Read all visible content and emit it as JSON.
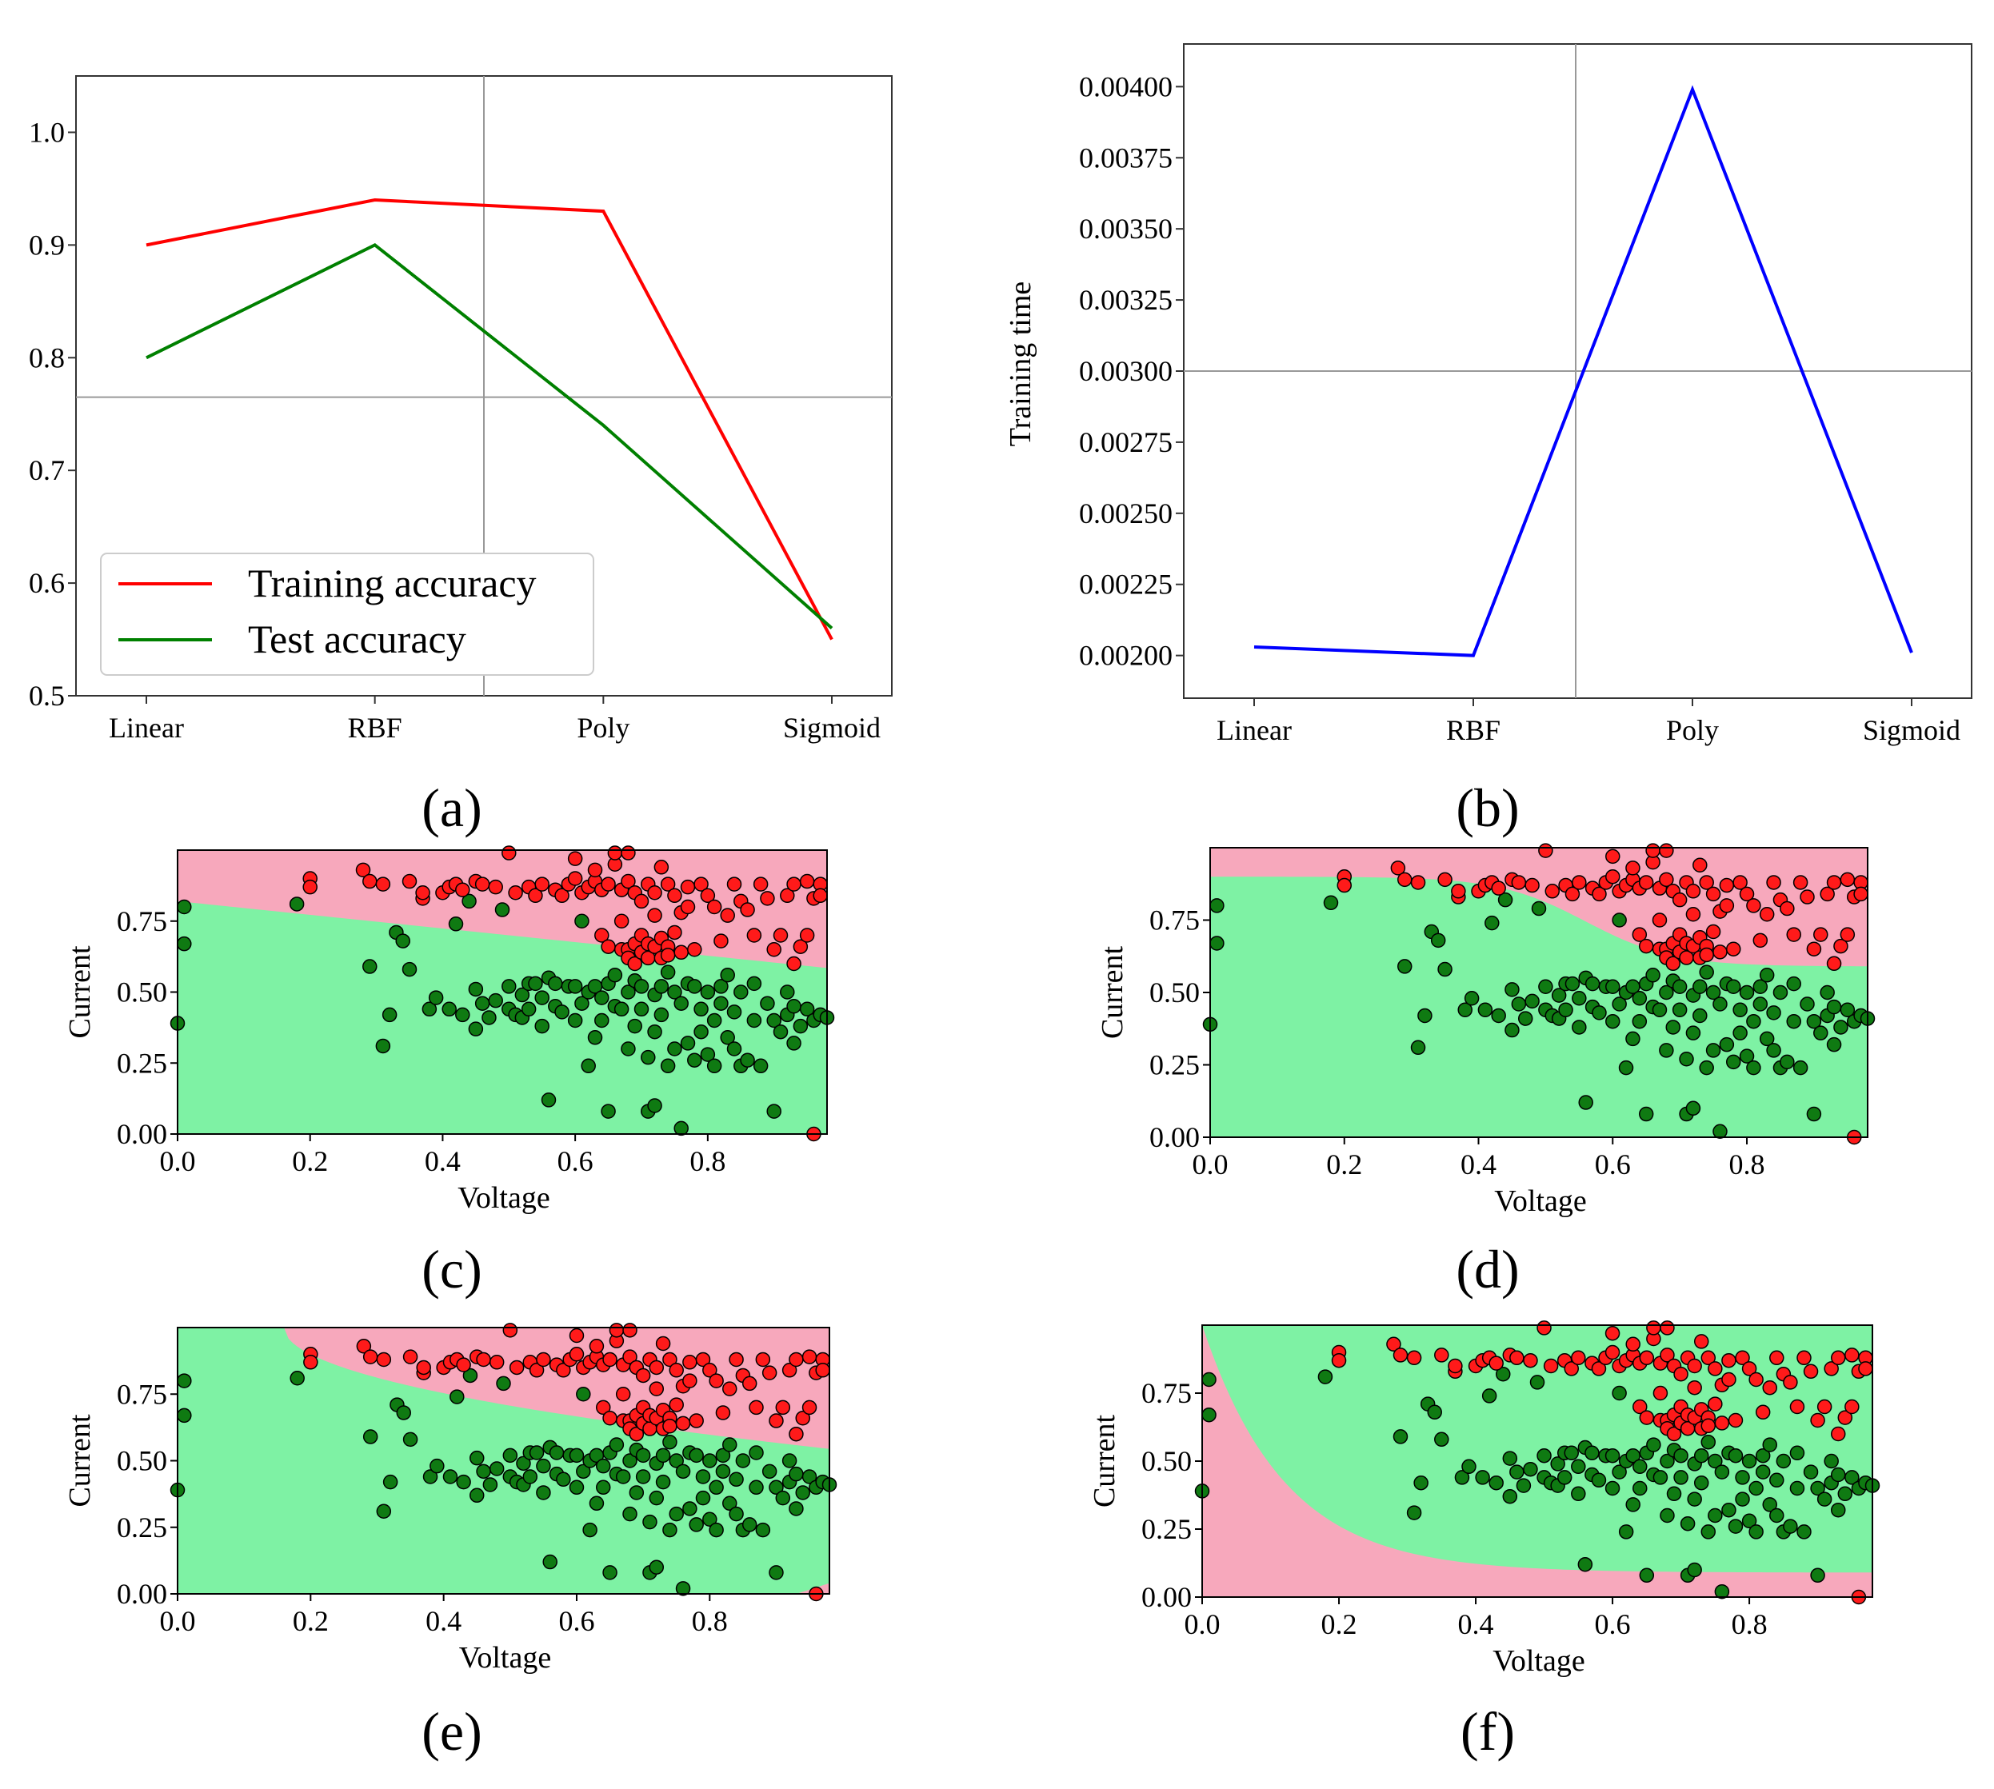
{
  "chart_data": [
    {
      "id": "a",
      "type": "line",
      "panel_label": "(a)",
      "categories": [
        "Linear",
        "RBF",
        "Poly",
        "Sigmoid"
      ],
      "series": [
        {
          "name": "Training accuracy",
          "color": "#ff0000",
          "values": [
            0.9,
            0.94,
            0.93,
            0.55
          ]
        },
        {
          "name": "Test accuracy",
          "color": "#008000",
          "values": [
            0.8,
            0.9,
            0.74,
            0.56
          ]
        }
      ],
      "ylim": [
        0.5,
        1.05
      ],
      "yticks": [
        "0.5",
        "0.6",
        "0.7",
        "0.8",
        "0.9",
        "1.0"
      ],
      "xlabel": "",
      "ylabel": "",
      "legend_position": "lower-left",
      "grid": "single crosshair lines"
    },
    {
      "id": "b",
      "type": "line",
      "panel_label": "(b)",
      "categories": [
        "Linear",
        "RBF",
        "Poly",
        "Sigmoid"
      ],
      "series": [
        {
          "name": "",
          "color": "#0000ff",
          "values": [
            0.00203,
            0.002,
            0.00399,
            0.00201
          ]
        }
      ],
      "ylim": [
        0.00185,
        0.00415
      ],
      "yticks": [
        "0.00200",
        "0.00225",
        "0.00250",
        "0.00275",
        "0.00300",
        "0.00325",
        "0.00350",
        "0.00375",
        "0.00400"
      ],
      "xlabel": "",
      "ylabel": "Training time",
      "grid": "single crosshair lines"
    }
  ],
  "scatter_panels": {
    "xlabel": "Voltage",
    "ylabel": "Current",
    "xticks": [
      "0.0",
      "0.2",
      "0.4",
      "0.6",
      "0.8"
    ],
    "yticks": [
      "0.00",
      "0.25",
      "0.50",
      "0.75"
    ],
    "xlim": [
      0,
      0.98
    ],
    "ylim": [
      0,
      1.0
    ],
    "region_colors": {
      "positive": "#f7a8bc",
      "negative": "#7ef2a4"
    },
    "point_colors": {
      "red": "#ff1a1a",
      "green": "#0f7a12"
    },
    "panels": [
      {
        "id": "c",
        "label": "(c)",
        "kernel": "Linear"
      },
      {
        "id": "d",
        "label": "(d)",
        "kernel": "RBF"
      },
      {
        "id": "e",
        "label": "(e)",
        "kernel": "Poly"
      },
      {
        "id": "f",
        "label": "(f)",
        "kernel": "Sigmoid"
      }
    ],
    "points_red": [
      [
        0.2,
        0.9
      ],
      [
        0.2,
        0.87
      ],
      [
        0.28,
        0.93
      ],
      [
        0.29,
        0.89
      ],
      [
        0.31,
        0.88
      ],
      [
        0.35,
        0.89
      ],
      [
        0.37,
        0.83
      ],
      [
        0.37,
        0.85
      ],
      [
        0.4,
        0.85
      ],
      [
        0.41,
        0.87
      ],
      [
        0.42,
        0.88
      ],
      [
        0.43,
        0.86
      ],
      [
        0.45,
        0.89
      ],
      [
        0.46,
        0.88
      ],
      [
        0.48,
        0.87
      ],
      [
        0.5,
        0.99
      ],
      [
        0.51,
        0.85
      ],
      [
        0.53,
        0.87
      ],
      [
        0.54,
        0.84
      ],
      [
        0.55,
        0.88
      ],
      [
        0.57,
        0.86
      ],
      [
        0.58,
        0.84
      ],
      [
        0.59,
        0.88
      ],
      [
        0.6,
        0.9
      ],
      [
        0.6,
        0.97
      ],
      [
        0.61,
        0.85
      ],
      [
        0.62,
        0.87
      ],
      [
        0.63,
        0.89
      ],
      [
        0.63,
        0.93
      ],
      [
        0.64,
        0.86
      ],
      [
        0.64,
        0.7
      ],
      [
        0.65,
        0.88
      ],
      [
        0.65,
        0.66
      ],
      [
        0.66,
        0.95
      ],
      [
        0.66,
        0.99
      ],
      [
        0.67,
        0.86
      ],
      [
        0.67,
        0.75
      ],
      [
        0.67,
        0.65
      ],
      [
        0.68,
        0.99
      ],
      [
        0.68,
        0.89
      ],
      [
        0.68,
        0.65
      ],
      [
        0.68,
        0.62
      ],
      [
        0.69,
        0.85
      ],
      [
        0.69,
        0.67
      ],
      [
        0.69,
        0.6
      ],
      [
        0.7,
        0.7
      ],
      [
        0.7,
        0.64
      ],
      [
        0.7,
        0.82
      ],
      [
        0.71,
        0.88
      ],
      [
        0.71,
        0.62
      ],
      [
        0.71,
        0.67
      ],
      [
        0.72,
        0.66
      ],
      [
        0.72,
        0.77
      ],
      [
        0.72,
        0.85
      ],
      [
        0.73,
        0.62
      ],
      [
        0.73,
        0.69
      ],
      [
        0.73,
        0.94
      ],
      [
        0.74,
        0.88
      ],
      [
        0.74,
        0.66
      ],
      [
        0.74,
        0.63
      ],
      [
        0.75,
        0.84
      ],
      [
        0.75,
        0.71
      ],
      [
        0.76,
        0.78
      ],
      [
        0.76,
        0.64
      ],
      [
        0.77,
        0.87
      ],
      [
        0.77,
        0.8
      ],
      [
        0.78,
        0.65
      ],
      [
        0.79,
        0.88
      ],
      [
        0.8,
        0.84
      ],
      [
        0.81,
        0.8
      ],
      [
        0.82,
        0.68
      ],
      [
        0.83,
        0.77
      ],
      [
        0.84,
        0.88
      ],
      [
        0.85,
        0.82
      ],
      [
        0.86,
        0.79
      ],
      [
        0.87,
        0.7
      ],
      [
        0.88,
        0.88
      ],
      [
        0.89,
        0.83
      ],
      [
        0.9,
        0.65
      ],
      [
        0.91,
        0.7
      ],
      [
        0.92,
        0.84
      ],
      [
        0.93,
        0.88
      ],
      [
        0.93,
        0.6
      ],
      [
        0.94,
        0.66
      ],
      [
        0.95,
        0.7
      ],
      [
        0.95,
        0.89
      ],
      [
        0.96,
        0.83
      ],
      [
        0.97,
        0.88
      ],
      [
        0.97,
        0.84
      ],
      [
        0.96,
        0.0
      ]
    ],
    "points_green": [
      [
        0.0,
        0.39
      ],
      [
        0.01,
        0.8
      ],
      [
        0.01,
        0.67
      ],
      [
        0.18,
        0.81
      ],
      [
        0.29,
        0.59
      ],
      [
        0.31,
        0.31
      ],
      [
        0.32,
        0.42
      ],
      [
        0.33,
        0.71
      ],
      [
        0.34,
        0.68
      ],
      [
        0.35,
        0.58
      ],
      [
        0.38,
        0.44
      ],
      [
        0.39,
        0.48
      ],
      [
        0.41,
        0.44
      ],
      [
        0.42,
        0.74
      ],
      [
        0.43,
        0.42
      ],
      [
        0.44,
        0.82
      ],
      [
        0.45,
        0.37
      ],
      [
        0.45,
        0.51
      ],
      [
        0.46,
        0.46
      ],
      [
        0.47,
        0.41
      ],
      [
        0.48,
        0.47
      ],
      [
        0.49,
        0.79
      ],
      [
        0.5,
        0.44
      ],
      [
        0.5,
        0.52
      ],
      [
        0.51,
        0.42
      ],
      [
        0.52,
        0.41
      ],
      [
        0.52,
        0.49
      ],
      [
        0.53,
        0.53
      ],
      [
        0.53,
        0.44
      ],
      [
        0.54,
        0.53
      ],
      [
        0.55,
        0.48
      ],
      [
        0.55,
        0.38
      ],
      [
        0.56,
        0.12
      ],
      [
        0.56,
        0.55
      ],
      [
        0.57,
        0.45
      ],
      [
        0.57,
        0.53
      ],
      [
        0.58,
        0.43
      ],
      [
        0.59,
        0.52
      ],
      [
        0.6,
        0.52
      ],
      [
        0.6,
        0.4
      ],
      [
        0.61,
        0.75
      ],
      [
        0.61,
        0.46
      ],
      [
        0.62,
        0.24
      ],
      [
        0.62,
        0.5
      ],
      [
        0.63,
        0.52
      ],
      [
        0.63,
        0.34
      ],
      [
        0.64,
        0.48
      ],
      [
        0.64,
        0.4
      ],
      [
        0.65,
        0.53
      ],
      [
        0.65,
        0.08
      ],
      [
        0.66,
        0.45
      ],
      [
        0.66,
        0.56
      ],
      [
        0.67,
        0.44
      ],
      [
        0.68,
        0.5
      ],
      [
        0.68,
        0.3
      ],
      [
        0.69,
        0.54
      ],
      [
        0.69,
        0.38
      ],
      [
        0.7,
        0.52
      ],
      [
        0.7,
        0.44
      ],
      [
        0.71,
        0.08
      ],
      [
        0.71,
        0.27
      ],
      [
        0.72,
        0.1
      ],
      [
        0.72,
        0.49
      ],
      [
        0.72,
        0.36
      ],
      [
        0.73,
        0.52
      ],
      [
        0.73,
        0.42
      ],
      [
        0.74,
        0.57
      ],
      [
        0.74,
        0.24
      ],
      [
        0.75,
        0.5
      ],
      [
        0.75,
        0.3
      ],
      [
        0.76,
        0.02
      ],
      [
        0.76,
        0.46
      ],
      [
        0.77,
        0.53
      ],
      [
        0.77,
        0.32
      ],
      [
        0.78,
        0.26
      ],
      [
        0.78,
        0.52
      ],
      [
        0.79,
        0.44
      ],
      [
        0.79,
        0.36
      ],
      [
        0.8,
        0.5
      ],
      [
        0.8,
        0.28
      ],
      [
        0.81,
        0.4
      ],
      [
        0.81,
        0.24
      ],
      [
        0.82,
        0.52
      ],
      [
        0.82,
        0.46
      ],
      [
        0.83,
        0.34
      ],
      [
        0.83,
        0.56
      ],
      [
        0.84,
        0.43
      ],
      [
        0.84,
        0.3
      ],
      [
        0.85,
        0.24
      ],
      [
        0.85,
        0.5
      ],
      [
        0.86,
        0.26
      ],
      [
        0.87,
        0.4
      ],
      [
        0.87,
        0.53
      ],
      [
        0.88,
        0.24
      ],
      [
        0.89,
        0.46
      ],
      [
        0.9,
        0.4
      ],
      [
        0.9,
        0.08
      ],
      [
        0.91,
        0.36
      ],
      [
        0.92,
        0.42
      ],
      [
        0.92,
        0.5
      ],
      [
        0.93,
        0.32
      ],
      [
        0.93,
        0.45
      ],
      [
        0.94,
        0.38
      ],
      [
        0.95,
        0.44
      ],
      [
        0.96,
        0.4
      ],
      [
        0.97,
        0.42
      ],
      [
        0.98,
        0.41
      ]
    ]
  }
}
